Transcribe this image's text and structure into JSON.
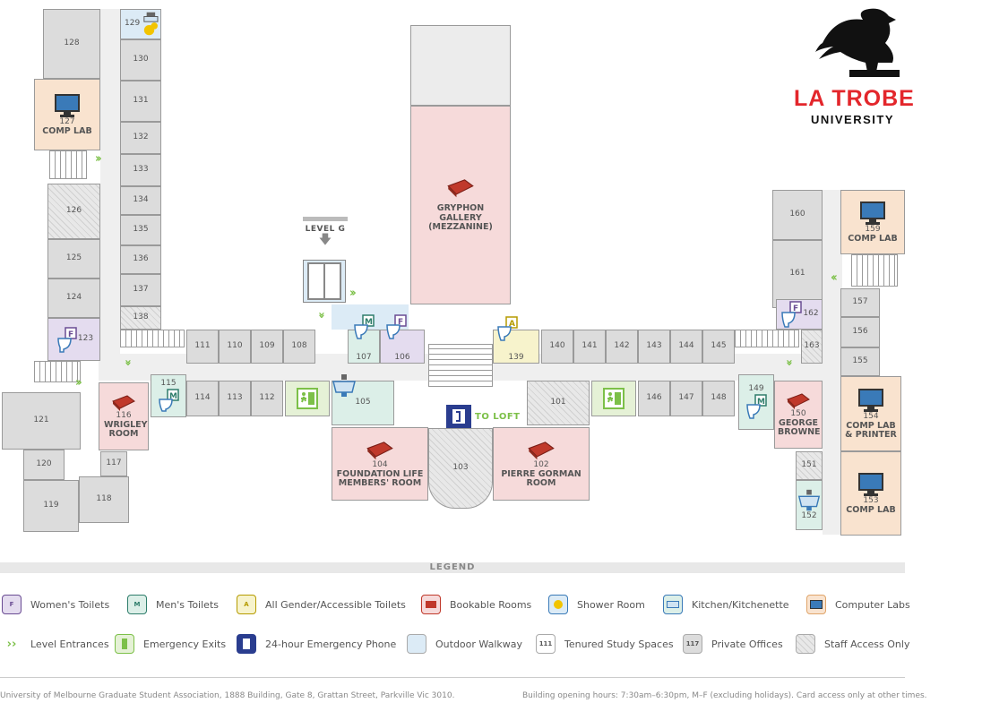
{
  "logo": {
    "line1": "LA TROBE",
    "line2": "UNIVERSITY"
  },
  "rooms": {
    "r101": "101",
    "r102": "102",
    "r103": "103",
    "r104": "104",
    "r105": "105",
    "r106": "106",
    "r107": "107",
    "r108": "108",
    "r109": "109",
    "r110": "110",
    "r111": "111",
    "r112": "112",
    "r113": "113",
    "r114": "114",
    "r115": "115",
    "r116": "116",
    "r117": "117",
    "r118": "118",
    "r119": "119",
    "r120": "120",
    "r121": "121",
    "r123": "123",
    "r124": "124",
    "r125": "125",
    "r126": "126",
    "r127": "127",
    "r128": "128",
    "r129": "129",
    "r130": "130",
    "r131": "131",
    "r132": "132",
    "r133": "133",
    "r134": "134",
    "r135": "135",
    "r136": "136",
    "r137": "137",
    "r138": "138",
    "r139": "139",
    "r140": "140",
    "r141": "141",
    "r142": "142",
    "r143": "143",
    "r144": "144",
    "r145": "145",
    "r146": "146",
    "r147": "147",
    "r148": "148",
    "r149": "149",
    "r150": "150",
    "r151": "151",
    "r152": "152",
    "r153": "153",
    "r154": "154",
    "r155": "155",
    "r156": "156",
    "r157": "157",
    "r159": "159",
    "r160": "160",
    "r161": "161",
    "r162": "162",
    "r163": "163"
  },
  "room_names": {
    "comp_lab": "COMP LAB",
    "wrigley": "WRIGLEY ROOM",
    "gryphon": "GRYPHON GALLERY (MEZZANINE)",
    "foundation": "FOUNDATION LIFE MEMBERS' ROOM",
    "pierre": "PIERRE GORMAN ROOM",
    "george": "GEORGE BROWNE",
    "comp_lab_printer": "COMP LAB & PRINTER",
    "level_g": "LEVEL G",
    "to_loft": "TO LOFT"
  },
  "legend": {
    "title": "LEGEND",
    "items": [
      {
        "label": "Women's Toilets",
        "icon": "womens-toilet-icon",
        "letter": "F"
      },
      {
        "label": "Men's Toilets",
        "icon": "mens-toilet-icon",
        "letter": "M"
      },
      {
        "label": "All Gender/Accessible Toilets",
        "icon": "accessible-toilet-icon",
        "letter": "A"
      },
      {
        "label": "Bookable Rooms",
        "icon": "book-icon"
      },
      {
        "label": "Shower Room",
        "icon": "shower-icon"
      },
      {
        "label": "Kitchen/Kitchenette",
        "icon": "sink-icon"
      },
      {
        "label": "Computer Labs",
        "icon": "computer-icon"
      },
      {
        "label": "Level Entrances",
        "icon": "chevron-icon"
      },
      {
        "label": "Emergency Exits",
        "icon": "exit-icon"
      },
      {
        "label": "24-hour Emergency Phone",
        "icon": "phone-icon"
      },
      {
        "label": "Outdoor Walkway",
        "icon": "walkway-swatch"
      },
      {
        "label": "Tenured Study Spaces",
        "icon": "study-swatch",
        "sample": "111"
      },
      {
        "label": "Private Offices",
        "icon": "office-swatch",
        "sample": "117"
      },
      {
        "label": "Staff Access Only",
        "icon": "hatch-swatch"
      }
    ]
  },
  "footer": {
    "address": "University of Melbourne Graduate Student Association, 1888 Building, Gate 8, Grattan Street, Parkville Vic 3010.",
    "hours": "Building opening hours: 7:30am–6:30pm, M–F (excluding holidays). Card access only at other times."
  },
  "colors": {
    "brand_red": "#e3262b",
    "entrance_green": "#7cc048",
    "women": "#e4dcef",
    "men": "#dcefe8",
    "bookable": "#f6dada",
    "comp": "#f9e3cf"
  }
}
